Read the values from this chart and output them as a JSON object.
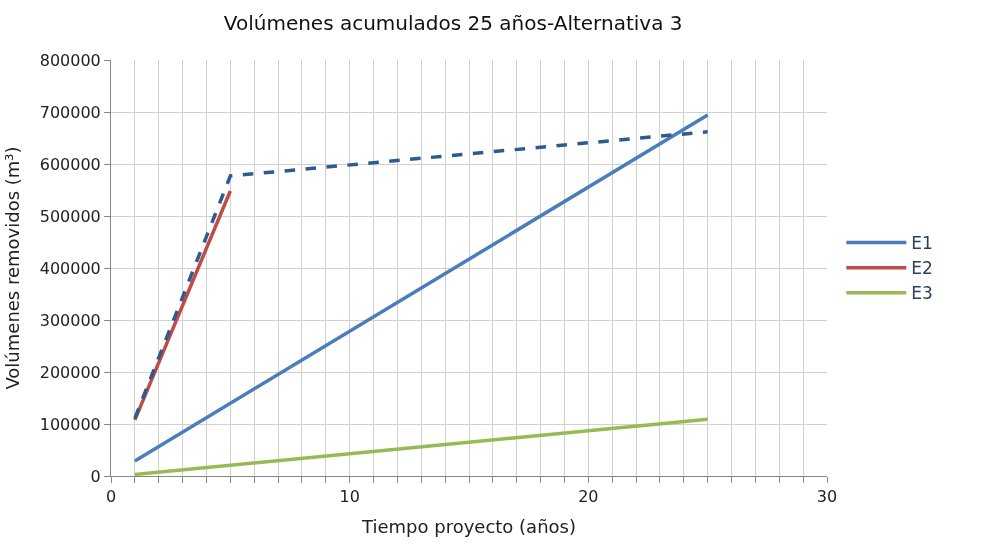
{
  "chart_data": {
    "type": "line",
    "title": "Volúmenes acumulados 25 años-Alternativa 3",
    "xlabel": "Tiempo proyecto (años)",
    "ylabel": "Volúmenes removidos (m³)",
    "series": [
      {
        "name": "E1",
        "color": "#4a7ebb",
        "x": [
          1,
          25
        ],
        "values": [
          29000,
          694000
        ]
      },
      {
        "name": "E2",
        "color": "#be4b48",
        "x": [
          1,
          5
        ],
        "values": [
          108000,
          548000
        ]
      },
      {
        "name": "E3",
        "color": "#98b954",
        "x": [
          1,
          25
        ],
        "values": [
          3000,
          109000
        ]
      },
      {
        "color": "#2e5a8e",
        "line_style": "dashed",
        "x": [
          1,
          5,
          25
        ],
        "values": [
          111000,
          577000,
          662000
        ]
      }
    ],
    "xlim": [
      0,
      30
    ],
    "ylim": [
      0,
      800000
    ],
    "xticks": [
      0,
      {
        "value": 1,
        "label": null
      },
      {
        "value": 2,
        "label": null
      },
      {
        "value": 3,
        "label": null
      },
      {
        "value": 4,
        "label": null
      },
      {
        "value": 5,
        "label": null
      },
      {
        "value": 6,
        "label": null
      },
      {
        "value": 7,
        "label": null
      },
      {
        "value": 8,
        "label": null
      },
      {
        "value": 9,
        "label": null
      },
      10,
      {
        "value": 11,
        "label": null
      },
      {
        "value": 12,
        "label": null
      },
      {
        "value": 13,
        "label": null
      },
      {
        "value": 14,
        "label": null
      },
      {
        "value": 15,
        "label": null
      },
      {
        "value": 16,
        "label": null
      },
      {
        "value": 17,
        "label": null
      },
      {
        "value": 18,
        "label": null
      },
      {
        "value": 19,
        "label": null
      },
      20,
      {
        "value": 21,
        "label": null
      },
      {
        "value": 22,
        "label": null
      },
      {
        "value": 23,
        "label": null
      },
      {
        "value": 24,
        "label": null
      },
      {
        "value": 25,
        "label": null
      },
      {
        "value": 26,
        "label": null
      },
      {
        "value": 27,
        "label": null
      },
      {
        "value": 28,
        "label": null
      },
      {
        "value": 29,
        "label": null
      },
      30
    ],
    "yticks": [
      0,
      100000,
      200000,
      300000,
      400000,
      500000,
      600000,
      700000,
      800000
    ],
    "grid": true,
    "legend": "right"
  }
}
